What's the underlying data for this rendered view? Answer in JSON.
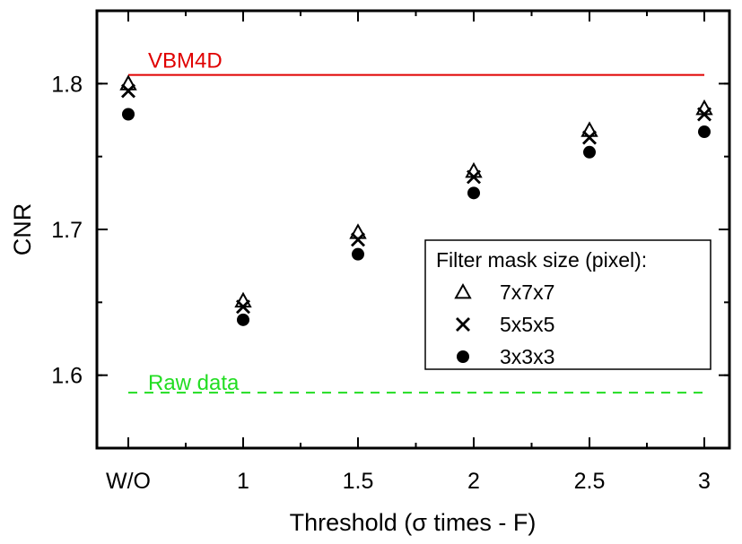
{
  "chart_data": {
    "type": "scatter",
    "xlabel": "Threshold (σ times - F)",
    "ylabel": "CNR",
    "categories": [
      "W/O",
      "1",
      "1.5",
      "2",
      "2.5",
      "3"
    ],
    "ylim": [
      1.55,
      1.85
    ],
    "yticks": [
      1.6,
      1.7,
      1.8
    ],
    "ytick_labels": [
      "1.6",
      "1.7",
      "1.8"
    ],
    "grid": false,
    "legend": {
      "title": "Filter mask size (pixel):",
      "placement": "right"
    },
    "series": [
      {
        "name": "7x7x7",
        "marker": "triangle",
        "values": [
          1.8,
          1.651,
          1.698,
          1.74,
          1.768,
          1.783
        ]
      },
      {
        "name": "5x5x5",
        "marker": "x",
        "values": [
          1.795,
          1.647,
          1.693,
          1.736,
          1.763,
          1.779
        ]
      },
      {
        "name": "3x3x3",
        "marker": "circle",
        "values": [
          1.779,
          1.638,
          1.683,
          1.725,
          1.753,
          1.767
        ]
      }
    ],
    "reference_lines": [
      {
        "label": "VBM4D",
        "value": 1.806,
        "color": "#e00000",
        "style": "solid"
      },
      {
        "label": "Raw data",
        "value": 1.588,
        "color": "#22dd22",
        "style": "dashed"
      }
    ]
  }
}
